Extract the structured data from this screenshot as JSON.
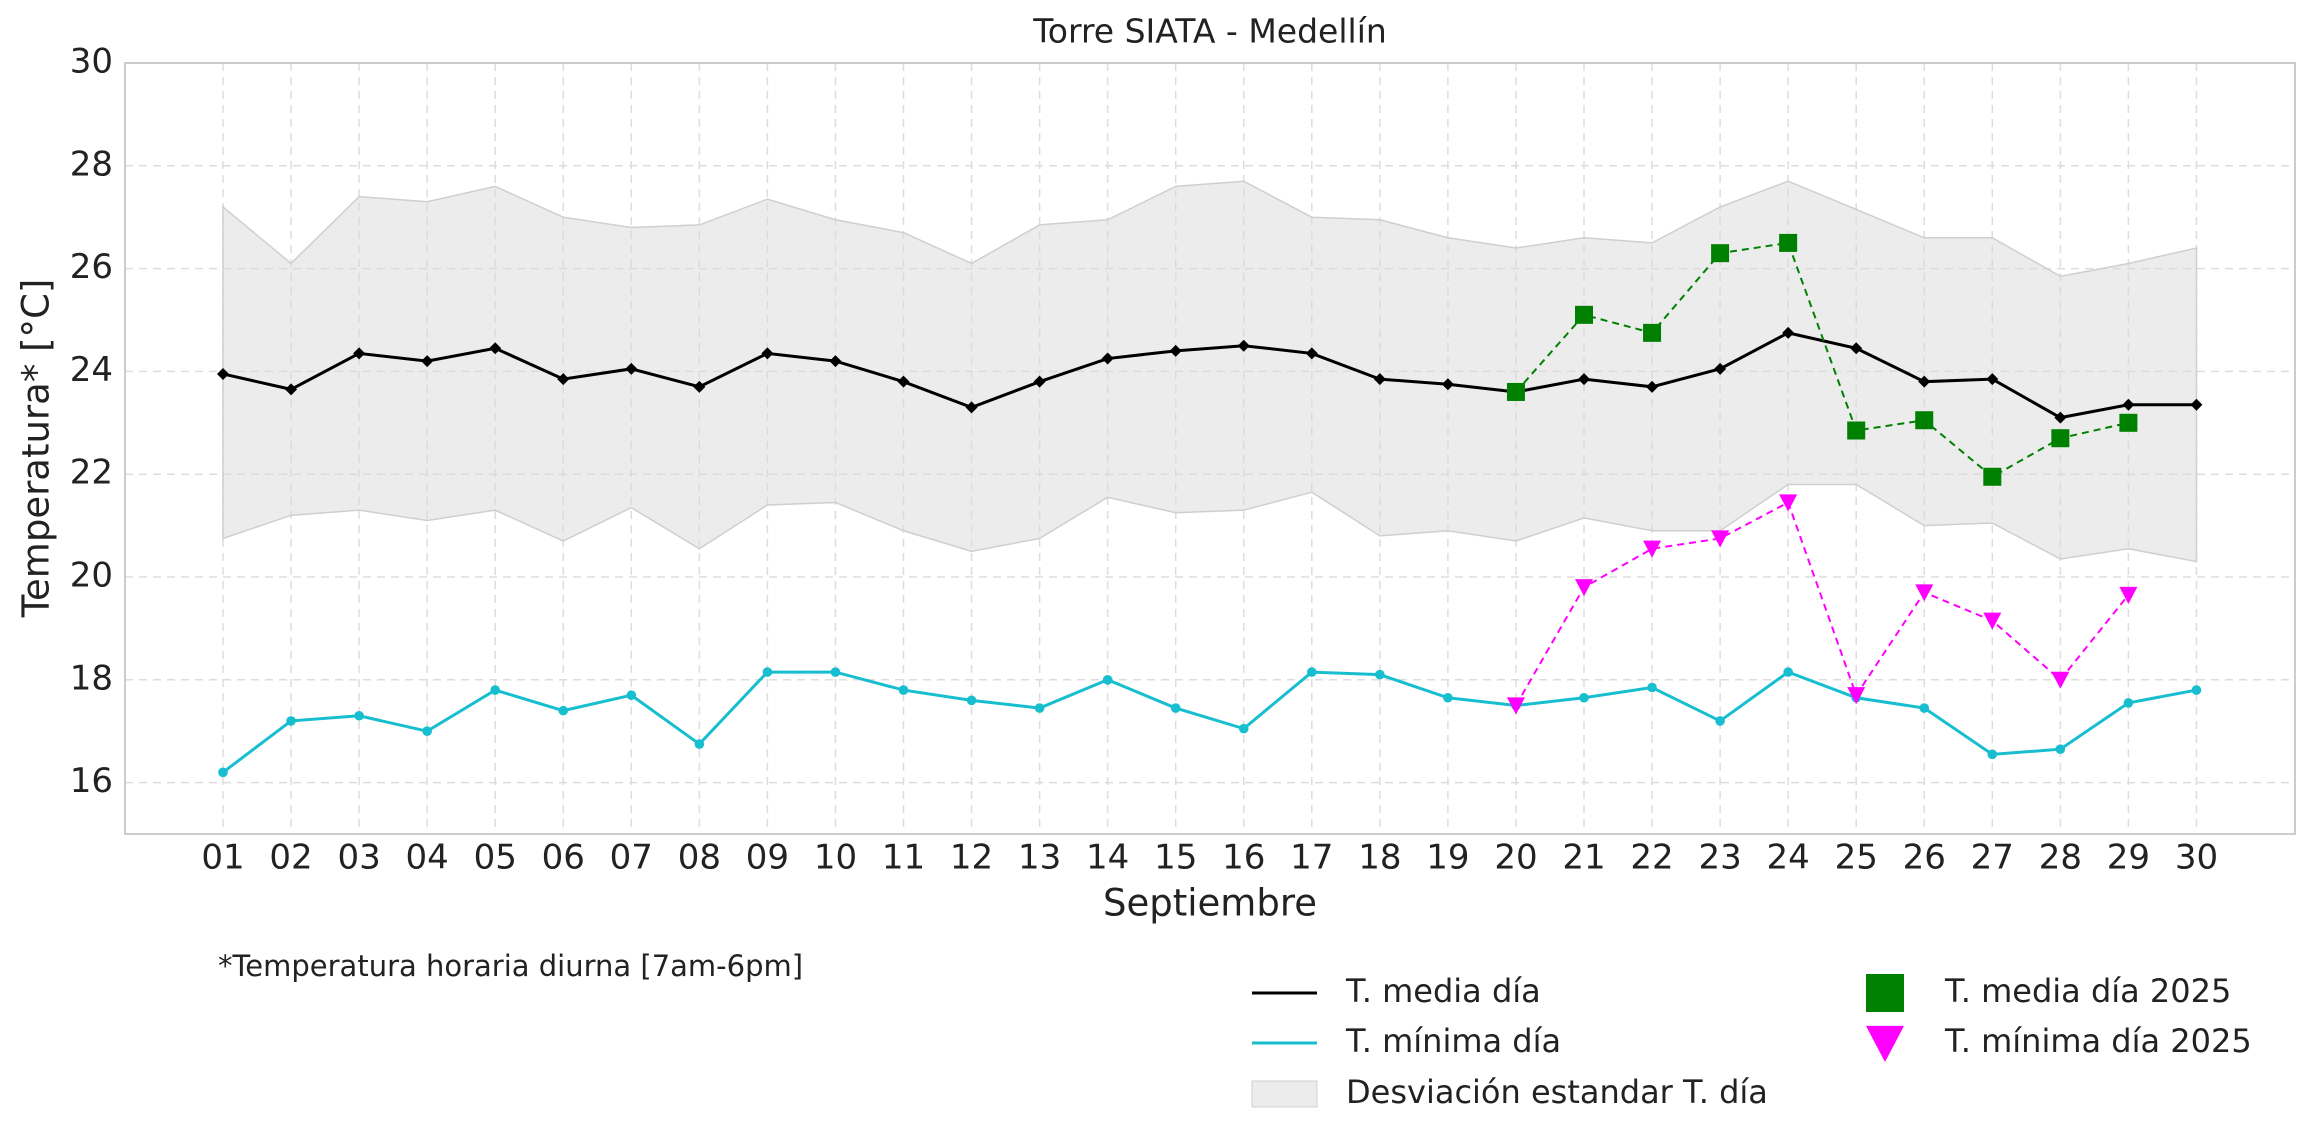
{
  "chart_data": {
    "type": "line",
    "title": "Torre SIATA - Medellín",
    "x_label": "Septiembre",
    "y_label": "Temperatura* [°C]",
    "note": "*Temperatura horaria diurna [7am-6pm]",
    "categories": [
      "01",
      "02",
      "03",
      "04",
      "05",
      "06",
      "07",
      "08",
      "09",
      "10",
      "11",
      "12",
      "13",
      "14",
      "15",
      "16",
      "17",
      "18",
      "19",
      "20",
      "21",
      "22",
      "23",
      "24",
      "25",
      "26",
      "27",
      "28",
      "29",
      "30"
    ],
    "ylim": [
      15,
      30
    ],
    "yticks": [
      16,
      18,
      20,
      22,
      24,
      26,
      28,
      30
    ],
    "grid": true,
    "legend": "below",
    "series": [
      {
        "name": "T. media día",
        "color": "#000000",
        "marker": "diamond",
        "values": [
          23.95,
          23.65,
          24.35,
          24.2,
          24.45,
          23.85,
          24.05,
          23.7,
          24.35,
          24.2,
          23.8,
          23.3,
          23.8,
          24.25,
          24.4,
          24.5,
          24.35,
          23.85,
          23.75,
          23.6,
          23.85,
          23.7,
          24.05,
          24.75,
          24.45,
          23.8,
          23.85,
          23.1,
          23.35,
          23.35
        ]
      },
      {
        "name": "T. mínima día",
        "color": "#17becf",
        "marker": "circle",
        "values": [
          16.2,
          17.2,
          17.3,
          17.0,
          17.8,
          17.4,
          17.7,
          16.75,
          18.15,
          18.15,
          17.8,
          17.6,
          17.45,
          18.0,
          17.45,
          17.05,
          18.15,
          18.1,
          17.65,
          17.5,
          17.65,
          17.85,
          17.2,
          18.15,
          17.65,
          17.45,
          16.55,
          16.65,
          17.55,
          17.8
        ]
      },
      {
        "name": "Desviación estandar T. día",
        "color": "#d9d9d9",
        "band": true,
        "upper": [
          27.2,
          26.1,
          27.4,
          27.3,
          27.6,
          27.0,
          26.8,
          26.85,
          27.35,
          26.95,
          26.7,
          26.1,
          26.85,
          26.95,
          27.6,
          27.7,
          27.0,
          26.95,
          26.6,
          26.4,
          26.6,
          26.5,
          27.2,
          27.7,
          27.15,
          26.6,
          26.6,
          25.85,
          26.1,
          26.4
        ],
        "lower": [
          20.75,
          21.2,
          21.3,
          21.1,
          21.3,
          20.7,
          21.35,
          20.55,
          21.4,
          21.45,
          20.9,
          20.5,
          20.75,
          21.55,
          21.25,
          21.3,
          21.65,
          20.8,
          20.9,
          20.7,
          21.15,
          20.9,
          20.9,
          21.8,
          21.8,
          21.0,
          21.05,
          20.35,
          20.55,
          20.3
        ]
      },
      {
        "name": "T. media día 2025",
        "color": "#008000",
        "marker": "square",
        "dashed": true,
        "values": [
          null,
          null,
          null,
          null,
          null,
          null,
          null,
          null,
          null,
          null,
          null,
          null,
          null,
          null,
          null,
          null,
          null,
          null,
          null,
          23.6,
          25.1,
          24.75,
          26.3,
          26.5,
          22.85,
          23.05,
          21.95,
          22.7,
          23.0,
          null
        ]
      },
      {
        "name": "T. mínima día 2025",
        "color": "#ff00ff",
        "marker": "triangle",
        "dashed": true,
        "values": [
          null,
          null,
          null,
          null,
          null,
          null,
          null,
          null,
          null,
          null,
          null,
          null,
          null,
          null,
          null,
          null,
          null,
          null,
          null,
          17.5,
          19.8,
          20.55,
          20.75,
          21.45,
          17.7,
          19.7,
          19.15,
          18.0,
          19.65,
          null
        ]
      }
    ]
  }
}
